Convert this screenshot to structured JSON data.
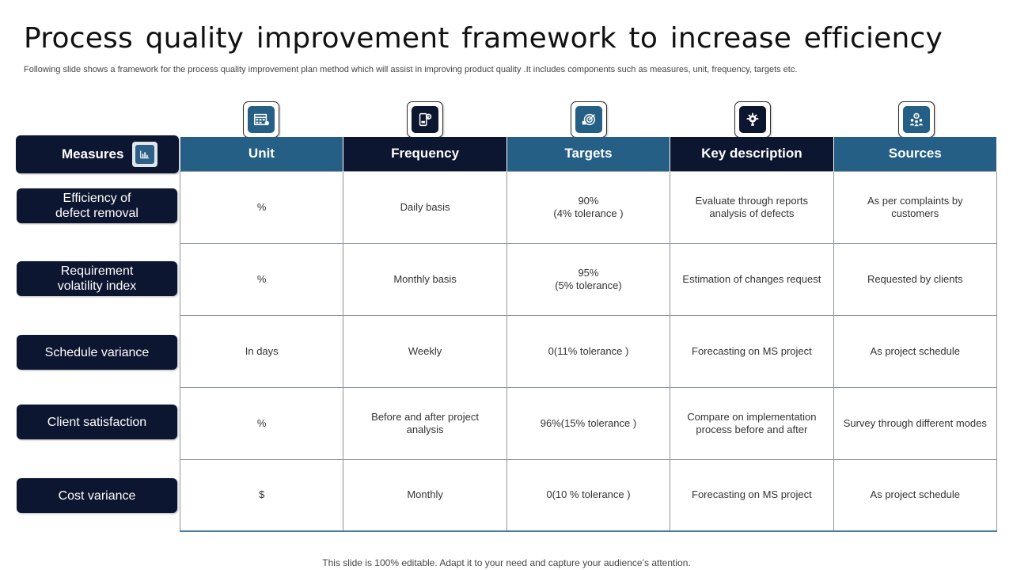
{
  "title": "Process quality improvement framework to increase efficiency",
  "subtitle": "Following slide shows a framework for the process quality improvement plan method which will assist in improving product quality .It includes components such as measures, unit, frequency, targets etc.",
  "footer": "This slide is 100% editable. Adapt it to your need and capture your audience’s attention.",
  "measures_header": "Measures",
  "colors": {
    "navy": "#0d1630",
    "steel_blue": "#255f85",
    "border": "#8d96a0"
  },
  "icons": [
    "calendar-grid-icon",
    "mobile-refresh-icon",
    "target-gear-icon",
    "gear-idea-icon",
    "people-gear-icon"
  ],
  "columns": [
    "Unit",
    "Frequency",
    "Targets",
    "Key description",
    "Sources"
  ],
  "rows": [
    {
      "measure": "Efficiency of\ndefect removal",
      "cells": [
        "%",
        "Daily basis",
        "90%\n(4% tolerance )",
        "Evaluate through reports\nanalysis of defects",
        "As per complaints by\ncustomers"
      ]
    },
    {
      "measure": "Requirement\nvolatility index",
      "cells": [
        "%",
        "Monthly basis",
        "95%\n(5% tolerance)",
        "Estimation of changes request",
        "Requested by clients"
      ]
    },
    {
      "measure": "Schedule variance",
      "cells": [
        "In days",
        "Weekly",
        "0(11% tolerance )",
        "Forecasting on MS project",
        "As project schedule"
      ]
    },
    {
      "measure": "Client satisfaction",
      "cells": [
        "%",
        "Before and after project\nanalysis",
        "96%(15% tolerance )",
        "Compare on implementation\nprocess before and after",
        "Survey through different modes"
      ]
    },
    {
      "measure": "Cost variance",
      "cells": [
        "$",
        "Monthly",
        "0(10 % tolerance )",
        "Forecasting on MS project",
        "As project schedule"
      ]
    }
  ]
}
